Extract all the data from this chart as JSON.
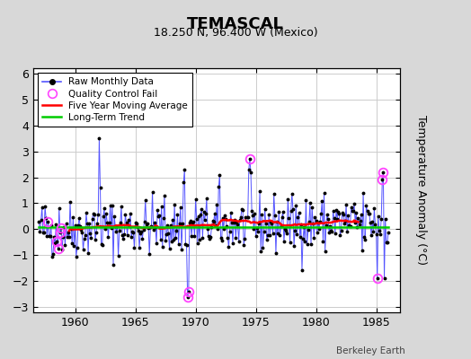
{
  "title": "TEMASCAL",
  "subtitle": "18.250 N, 96.400 W (Mexico)",
  "ylabel": "Temperature Anomaly (°C)",
  "credit": "Berkeley Earth",
  "xlim": [
    1956.5,
    1987.0
  ],
  "ylim": [
    -3.2,
    6.2
  ],
  "yticks": [
    -3,
    -2,
    -1,
    0,
    1,
    2,
    3,
    4,
    5,
    6
  ],
  "xticks": [
    1960,
    1965,
    1970,
    1975,
    1980,
    1985
  ],
  "background_color": "#d8d8d8",
  "plot_bg_color": "#ffffff",
  "long_term_trend_y": 0.1,
  "long_term_trend_color": "#00cc00",
  "moving_avg_color": "#ff0000",
  "raw_line_color": "#5555ff",
  "raw_dot_color": "#000000",
  "qc_fail_color": "#ff44ff",
  "grid_color": "#cccccc",
  "seed": 42,
  "n_months": 349,
  "start_year": 1957.0
}
